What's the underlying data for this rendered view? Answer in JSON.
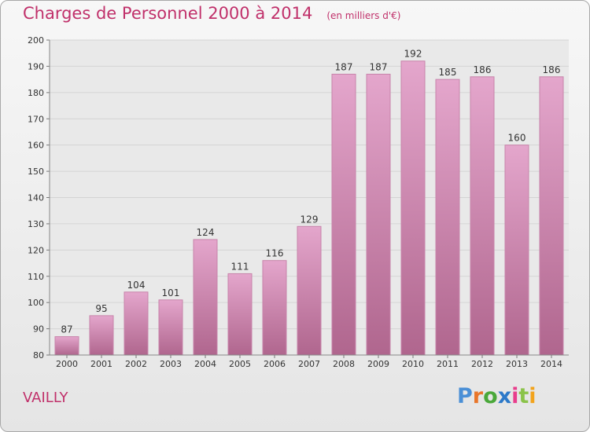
{
  "title": "Charges de Personnel 2000 à 2014",
  "unit_note": "(en milliers d'€)",
  "commune": "VAILLY",
  "logo": {
    "letters": [
      "P",
      "r",
      "o",
      "x",
      "i",
      "t",
      "i"
    ],
    "colors": [
      "#4a8fd6",
      "#e8762b",
      "#4aa83a",
      "#2c79c9",
      "#e83e8c",
      "#8bc34a",
      "#f2a31c"
    ]
  },
  "colors": {
    "accent": "#c0306a",
    "bar_top": "#e4a6cc",
    "bar_bottom": "#b0668e"
  },
  "chart_data": {
    "type": "bar",
    "title": "Charges de Personnel 2000 à 2014",
    "subtitle": "(en milliers d'€)",
    "xlabel": "",
    "ylabel": "",
    "categories": [
      "2000",
      "2001",
      "2002",
      "2003",
      "2004",
      "2005",
      "2006",
      "2007",
      "2008",
      "2009",
      "2010",
      "2011",
      "2012",
      "2013",
      "2014"
    ],
    "values": [
      87,
      95,
      104,
      101,
      124,
      111,
      116,
      129,
      187,
      187,
      192,
      185,
      186,
      160,
      186
    ],
    "ylim": [
      80,
      200
    ],
    "yticks": [
      80,
      90,
      100,
      110,
      120,
      130,
      140,
      150,
      160,
      170,
      180,
      190,
      200
    ],
    "grid": true,
    "data_labels": true
  }
}
